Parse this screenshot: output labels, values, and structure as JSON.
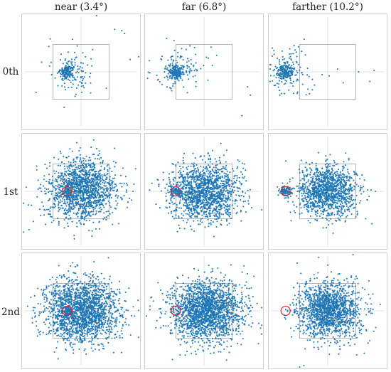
{
  "columns": [
    "near (3.4°)",
    "far (6.8°)",
    "farther (10.2°)"
  ],
  "rows": [
    "0th",
    "1st",
    "2nd"
  ],
  "colors": {
    "points": "#1f77b4",
    "target_circle": "#e0202a",
    "frame": "#b5b5b5",
    "crosshair": "#d9d9d9"
  },
  "chart_data": {
    "type": "scatter",
    "panels": [
      {
        "row": "0th",
        "column": "near (3.4°)",
        "fixation": {
          "x": 0,
          "y": 0
        },
        "target": {
          "x": -0.5,
          "y": 0,
          "shown": false
        },
        "cluster": {
          "x": -0.5,
          "y": 0,
          "sx": 0.12,
          "sy": 0.12,
          "n": 160
        },
        "spread": {
          "x": -0.3,
          "y": 0.05,
          "sx": 0.35,
          "sy": 0.45,
          "n": 110
        },
        "outliers": [
          [
            1.2,
            1.55
          ],
          [
            1.45,
            1.5
          ],
          [
            1.55,
            1.4
          ],
          [
            2.1,
            0.55
          ],
          [
            1.75,
            0.45
          ],
          [
            -1.6,
            -0.75
          ],
          [
            -1.1,
            1.2
          ],
          [
            -1.4,
            0.35
          ],
          [
            0.55,
            2.1
          ],
          [
            -0.6,
            -1.3
          ],
          [
            0.9,
            -0.6
          ]
        ]
      },
      {
        "row": "0th",
        "column": "far (6.8°)",
        "fixation": {
          "x": 0,
          "y": 0
        },
        "target": {
          "x": -1.0,
          "y": 0,
          "shown": false
        },
        "cluster": {
          "x": -1.0,
          "y": 0,
          "sx": 0.14,
          "sy": 0.13,
          "n": 190
        },
        "spread": {
          "x": -0.85,
          "y": 0.1,
          "sx": 0.45,
          "sy": 0.4,
          "n": 120
        },
        "outliers": [
          [
            0.45,
            0.6
          ],
          [
            0.25,
            0.9
          ],
          [
            1.55,
            -0.55
          ],
          [
            1.65,
            -0.85
          ],
          [
            1.35,
            -1.6
          ],
          [
            0.15,
            0.5
          ],
          [
            -0.5,
            0.95
          ],
          [
            -1.65,
            -0.3
          ]
        ]
      },
      {
        "row": "0th",
        "column": "farther (10.2°)",
        "fixation": {
          "x": 0,
          "y": 0
        },
        "target": {
          "x": -1.5,
          "y": 0,
          "shown": false
        },
        "cluster": {
          "x": -1.5,
          "y": 0,
          "sx": 0.14,
          "sy": 0.13,
          "n": 190
        },
        "spread": {
          "x": -1.4,
          "y": 0.05,
          "sx": 0.4,
          "sy": 0.45,
          "n": 110
        },
        "outliers": [
          [
            1.5,
            -0.35
          ],
          [
            1.1,
            0.0
          ],
          [
            0.55,
            -0.4
          ],
          [
            1.65,
            0.05
          ],
          [
            -0.2,
            -0.1
          ],
          [
            -0.65,
            -0.8
          ],
          [
            0.05,
            -0.15
          ],
          [
            0.35,
            0.1
          ]
        ]
      },
      {
        "row": "1st",
        "column": "near (3.4°)",
        "fixation": {
          "x": 0,
          "y": 0
        },
        "target": {
          "x": -0.5,
          "y": 0,
          "shown": true
        },
        "cluster": {
          "x": -0.5,
          "y": 0,
          "sx": 0.12,
          "sy": 0.11,
          "n": 90
        },
        "spread": {
          "x": 0.05,
          "y": 0.05,
          "sx": 0.6,
          "sy": 0.55,
          "n": 1500
        },
        "outliers": [
          [
            -1.85,
            -1.4
          ],
          [
            -1.7,
            -1.1
          ],
          [
            -1.95,
            0.15
          ],
          [
            1.85,
            0.0
          ],
          [
            -0.4,
            1.55
          ],
          [
            1.2,
            0.9
          ]
        ]
      },
      {
        "row": "1st",
        "column": "far (6.8°)",
        "fixation": {
          "x": 0,
          "y": 0
        },
        "target": {
          "x": -1.0,
          "y": 0,
          "shown": true
        },
        "cluster": {
          "x": -1.0,
          "y": 0,
          "sx": 0.13,
          "sy": 0.12,
          "n": 90
        },
        "spread": {
          "x": 0.05,
          "y": 0.0,
          "sx": 0.6,
          "sy": 0.5,
          "n": 1500
        },
        "outliers": [
          [
            0.15,
            1.4
          ],
          [
            0.6,
            1.75
          ],
          [
            -1.6,
            0.25
          ],
          [
            1.7,
            -0.6
          ],
          [
            -0.35,
            -1.45
          ],
          [
            0.35,
            -1.65
          ]
        ]
      },
      {
        "row": "1st",
        "column": "farther (10.2°)",
        "fixation": {
          "x": 0,
          "y": 0
        },
        "target": {
          "x": -1.5,
          "y": 0,
          "shown": true
        },
        "cluster": {
          "x": -1.5,
          "y": 0,
          "sx": 0.12,
          "sy": 0.11,
          "n": 110
        },
        "spread": {
          "x": 0.0,
          "y": 0.0,
          "sx": 0.5,
          "sy": 0.45,
          "n": 1300
        },
        "outliers": [
          [
            -0.9,
            0.7
          ],
          [
            -0.95,
            -0.6
          ],
          [
            -1.35,
            0.35
          ],
          [
            0.75,
            1.15
          ],
          [
            1.35,
            -1.0
          ],
          [
            1.7,
            0.0
          ],
          [
            -1.2,
            -0.5
          ]
        ]
      },
      {
        "row": "2nd",
        "column": "near (3.4°)",
        "fixation": {
          "x": 0,
          "y": 0
        },
        "target": {
          "x": -0.5,
          "y": 0,
          "shown": true
        },
        "cluster": {
          "x": -0.5,
          "y": 0,
          "sx": 0.1,
          "sy": 0.1,
          "n": 40
        },
        "spread": {
          "x": 0.0,
          "y": 0.0,
          "sx": 0.65,
          "sy": 0.55,
          "n": 2000
        },
        "outliers": [
          [
            -0.45,
            1.45
          ],
          [
            -0.55,
            -1.4
          ],
          [
            1.1,
            -1.0
          ]
        ]
      },
      {
        "row": "2nd",
        "column": "far (6.8°)",
        "fixation": {
          "x": 0,
          "y": 0
        },
        "target": {
          "x": -1.0,
          "y": 0,
          "shown": true
        },
        "cluster": {
          "x": -1.0,
          "y": 0,
          "sx": 0.08,
          "sy": 0.08,
          "n": 6
        },
        "spread": {
          "x": 0.05,
          "y": 0.0,
          "sx": 0.65,
          "sy": 0.55,
          "n": 2000
        },
        "outliers": [
          [
            0.8,
            -1.8
          ],
          [
            1.35,
            -0.3
          ],
          [
            -0.45,
            -1.55
          ],
          [
            -1.2,
            -0.8
          ],
          [
            0.3,
            1.45
          ]
        ]
      },
      {
        "row": "2nd",
        "column": "farther (10.2°)",
        "fixation": {
          "x": 0,
          "y": 0
        },
        "target": {
          "x": -1.5,
          "y": 0,
          "shown": true
        },
        "cluster": {
          "x": -1.5,
          "y": 0,
          "sx": 0.05,
          "sy": 0.05,
          "n": 3
        },
        "spread": {
          "x": 0.05,
          "y": 0.0,
          "sx": 0.55,
          "sy": 0.5,
          "n": 1600
        },
        "outliers": [
          [
            0.9,
            2.05
          ],
          [
            -1.25,
            -0.15
          ],
          [
            -1.0,
            -2.1
          ],
          [
            -0.85,
            -2.0
          ],
          [
            1.3,
            -1.55
          ],
          [
            1.55,
            0.25
          ],
          [
            -0.9,
            0.25
          ]
        ]
      }
    ],
    "extent": {
      "x": [
        -2,
        2
      ],
      "y": [
        -2,
        2
      ]
    },
    "square": {
      "x": [
        -1,
        1
      ],
      "y": [
        -1,
        1
      ]
    }
  }
}
